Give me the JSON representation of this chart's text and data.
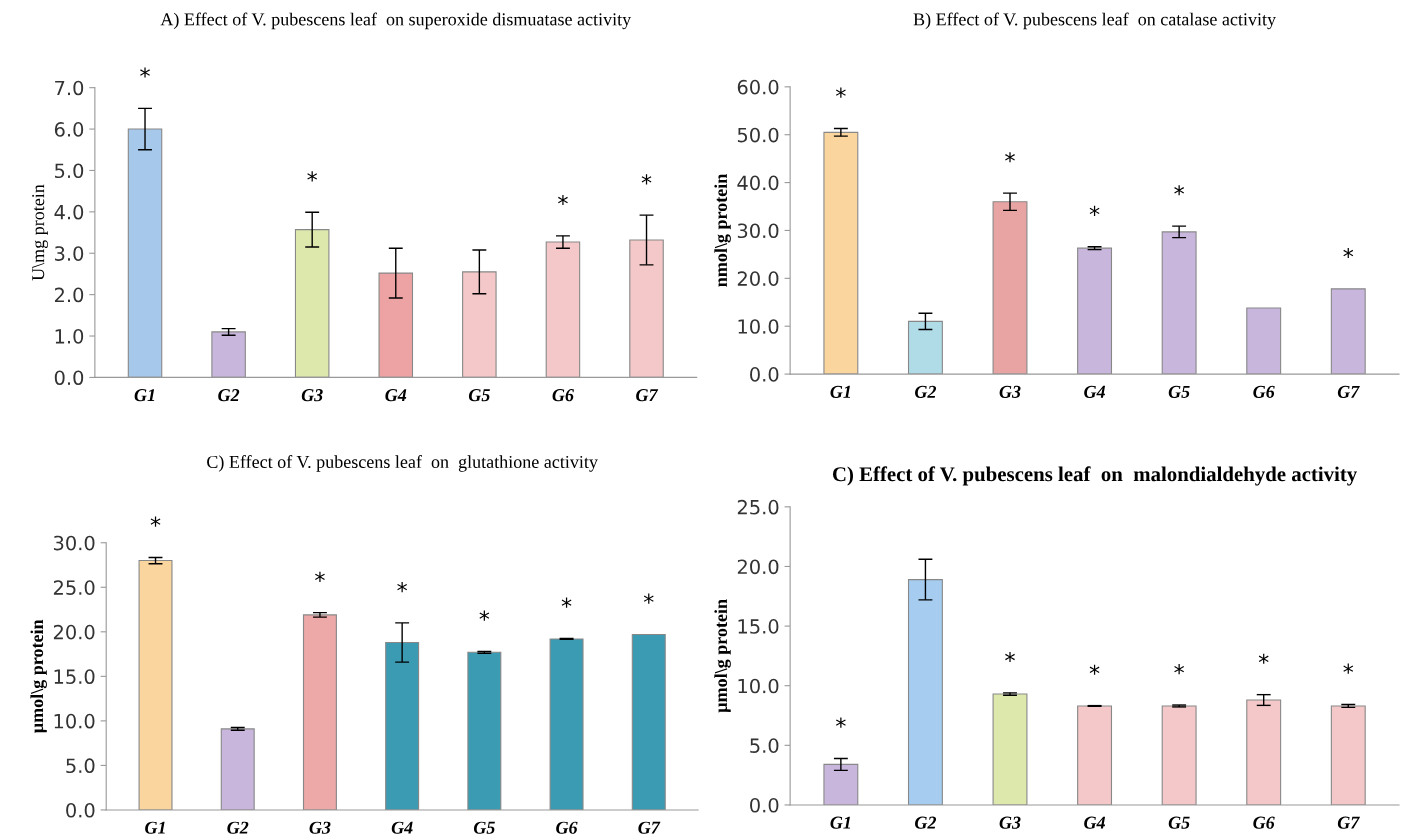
{
  "chart_data": [
    {
      "type": "bar",
      "title": "A) Effect of V. pubescens leaf  on superoxide dismuatase activity",
      "ylabel": "U\\mg protein",
      "categories": [
        "G1",
        "G2",
        "G3",
        "G4",
        "G5",
        "G6",
        "G7"
      ],
      "values": [
        6.0,
        1.1,
        3.57,
        2.52,
        2.55,
        3.27,
        3.32
      ],
      "errors": [
        0.5,
        0.08,
        0.42,
        0.6,
        0.53,
        0.15,
        0.6
      ],
      "colors": [
        "#a6c8ea",
        "#c9b6dc",
        "#dde8ad",
        "#eda3a3",
        "#f4c8c8",
        "#f4c8c8",
        "#f4c8c8"
      ],
      "ylim": [
        0,
        7.0
      ],
      "yticks": [
        {
          "value": 0,
          "label": "0.0"
        },
        {
          "value": 1,
          "label": "1.0"
        },
        {
          "value": 2,
          "label": "2.0"
        },
        {
          "value": 3,
          "label": "3.0"
        },
        {
          "value": 4,
          "label": "4.0"
        },
        {
          "value": 5,
          "label": "5.0"
        },
        {
          "value": 6,
          "label": "6.0"
        },
        {
          "value": 7,
          "label": "7.0"
        }
      ],
      "grid": false,
      "annotations": [
        {
          "text": "*",
          "x": "G1",
          "y": 6.0
        },
        {
          "text": "*",
          "x": "G3",
          "y": 3.57
        },
        {
          "text": "*",
          "x": "G6",
          "y": 3.27
        },
        {
          "text": "*",
          "x": "G7",
          "y": 3.32
        }
      ]
    },
    {
      "type": "bar",
      "title": "B) Effect of V. pubescens leaf  on catalase activity",
      "ylabel": "nmol\\g protein",
      "categories": [
        "G1",
        "G2",
        "G3",
        "G4",
        "G5",
        "G6",
        "G7"
      ],
      "values": [
        50.5,
        11.0,
        36.0,
        26.3,
        29.7,
        13.8,
        17.8
      ],
      "errors": [
        0.8,
        1.7,
        1.8,
        0.3,
        1.2,
        null,
        null
      ],
      "colors": [
        "#fbd59e",
        "#b0dce8",
        "#e8a3a3",
        "#c9b6dc",
        "#c9b6dc",
        "#c9b6dc",
        "#c9b6dc"
      ],
      "ylim": [
        0,
        60.0
      ],
      "yticks": [
        {
          "value": 0,
          "label": "0.0"
        },
        {
          "value": 10,
          "label": "10.0"
        },
        {
          "value": 20,
          "label": "20.0"
        },
        {
          "value": 30,
          "label": "30.0"
        },
        {
          "value": 40,
          "label": "40.0"
        },
        {
          "value": 50,
          "label": "50.0"
        },
        {
          "value": 60,
          "label": "60.0"
        }
      ],
      "grid": false,
      "annotations": [
        {
          "text": "*",
          "x": "G1",
          "y": 50.5
        },
        {
          "text": "*",
          "x": "G3",
          "y": 36.0
        },
        {
          "text": "*",
          "x": "G4",
          "y": 26.3
        },
        {
          "text": "*",
          "x": "G5",
          "y": 29.7
        },
        {
          "text": "*",
          "x": "G7",
          "y": 17.8
        }
      ]
    },
    {
      "type": "bar",
      "title": "C) Effect of V. pubescens leaf  on  glutathione activity",
      "ylabel": "µmol\\g protein",
      "categories": [
        "G1",
        "G2",
        "G3",
        "G4",
        "G5",
        "G6",
        "G7"
      ],
      "values": [
        28.0,
        9.1,
        21.9,
        18.8,
        17.7,
        19.2,
        19.7
      ],
      "errors": [
        0.35,
        0.15,
        0.25,
        2.2,
        0.1,
        0.05,
        null
      ],
      "colors": [
        "#fbd59e",
        "#c9b6dc",
        "#eda8a8",
        "#3a9bb3",
        "#3a9bb3",
        "#3a9bb3",
        "#3a9bb3"
      ],
      "ylim": [
        0,
        30.0
      ],
      "yticks": [
        {
          "value": 0,
          "label": "0.0"
        },
        {
          "value": 5,
          "label": "5.0"
        },
        {
          "value": 10,
          "label": "10.0"
        },
        {
          "value": 15,
          "label": "15.0"
        },
        {
          "value": 20,
          "label": "20.0"
        },
        {
          "value": 25,
          "label": "25.0"
        },
        {
          "value": 30,
          "label": "30.0"
        }
      ],
      "grid": false,
      "annotations": [
        {
          "text": "*",
          "x": "G1",
          "y": 28.0
        },
        {
          "text": "*",
          "x": "G3",
          "y": 21.9
        },
        {
          "text": "*",
          "x": "G4",
          "y": 18.8
        },
        {
          "text": "*",
          "x": "G5",
          "y": 17.7
        },
        {
          "text": "*",
          "x": "G6",
          "y": 19.2
        },
        {
          "text": "*",
          "x": "G7",
          "y": 19.7
        }
      ]
    },
    {
      "type": "bar",
      "title": "C) Effect of V. pubescens leaf  on  malondialdehyde activity",
      "ylabel": "µmol\\g protein",
      "categories": [
        "G1",
        "G2",
        "G3",
        "G4",
        "G5",
        "G6",
        "G7"
      ],
      "values": [
        3.4,
        18.9,
        9.3,
        8.3,
        8.3,
        8.8,
        8.3
      ],
      "errors": [
        0.5,
        1.7,
        0.1,
        0.03,
        0.08,
        0.45,
        0.12
      ],
      "colors": [
        "#c9b6dc",
        "#a6cdf0",
        "#dde8ad",
        "#f4c8c8",
        "#f4c8c8",
        "#f4c8c8",
        "#f4c8c8"
      ],
      "ylim": [
        0,
        25.0
      ],
      "yticks": [
        {
          "value": 0,
          "label": "0.0"
        },
        {
          "value": 5,
          "label": "5.0"
        },
        {
          "value": 10,
          "label": "10.0"
        },
        {
          "value": 15,
          "label": "15.0"
        },
        {
          "value": 20,
          "label": "20.0"
        },
        {
          "value": 25,
          "label": "25.0"
        }
      ],
      "grid": false,
      "annotations": [
        {
          "text": "*",
          "x": "G1",
          "y": 3.4
        },
        {
          "text": "*",
          "x": "G3",
          "y": 9.3
        },
        {
          "text": "*",
          "x": "G4",
          "y": 8.3
        },
        {
          "text": "*",
          "x": "G5",
          "y": 8.3
        },
        {
          "text": "*",
          "x": "G6",
          "y": 8.8
        },
        {
          "text": "*",
          "x": "G7",
          "y": 8.3
        }
      ]
    }
  ]
}
